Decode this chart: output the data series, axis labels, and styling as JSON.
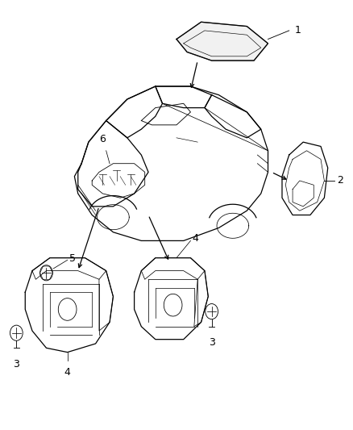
{
  "background_color": "#ffffff",
  "line_color": "#000000",
  "label_color": "#000000",
  "figure_width": 4.38,
  "figure_height": 5.33,
  "dpi": 100
}
